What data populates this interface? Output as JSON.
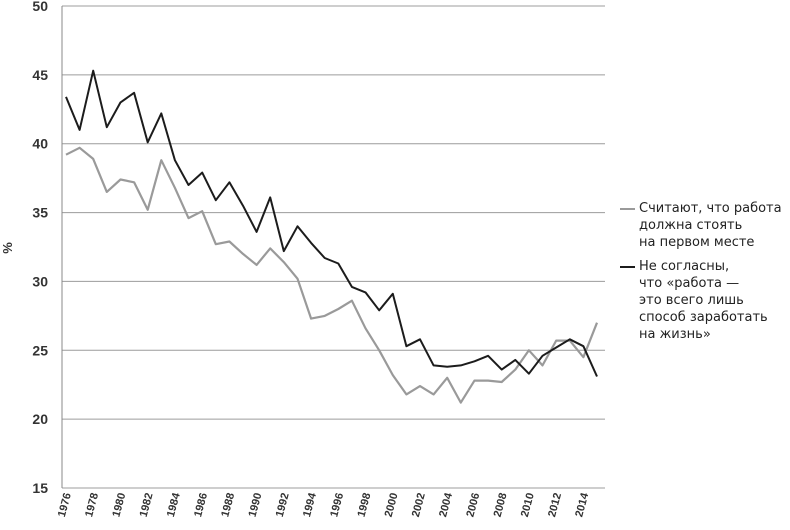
{
  "chart_data": {
    "type": "line",
    "title": "",
    "xlabel": "",
    "ylabel": "%",
    "ylim": [
      15,
      50
    ],
    "yticks": [
      "15",
      "20",
      "25",
      "30",
      "35",
      "40",
      "45",
      "50"
    ],
    "x": [
      1976,
      1977,
      1978,
      1979,
      1980,
      1981,
      1982,
      1983,
      1984,
      1985,
      1986,
      1987,
      1988,
      1989,
      1990,
      1991,
      1992,
      1993,
      1994,
      1995,
      1996,
      1997,
      1998,
      1999,
      2000,
      2001,
      2002,
      2003,
      2004,
      2005,
      2006,
      2007,
      2008,
      2009,
      2010,
      2011,
      2012,
      2013,
      2014,
      2015
    ],
    "xticks": [
      "1976",
      "1978",
      "1980",
      "1982",
      "1984",
      "1986",
      "1988",
      "1990",
      "1992",
      "1994",
      "1996",
      "1998",
      "2000",
      "2002",
      "2004",
      "2006",
      "2008",
      "2010",
      "2012",
      "2014"
    ],
    "grid": true,
    "legend_position": "right",
    "series": [
      {
        "name": "Считают, что работа должна стоять на первом месте",
        "color": "#9a9a9a",
        "values": [
          39.2,
          39.7,
          38.9,
          36.5,
          37.4,
          37.2,
          35.2,
          38.8,
          36.8,
          34.6,
          35.1,
          32.7,
          32.9,
          32.0,
          31.2,
          32.4,
          31.4,
          30.2,
          27.3,
          27.5,
          28.0,
          28.6,
          26.6,
          25.0,
          23.2,
          21.8,
          22.4,
          21.8,
          23.0,
          21.2,
          22.8,
          22.8,
          22.7,
          23.6,
          25.0,
          23.9,
          25.7,
          25.7,
          24.5,
          27.0
        ]
      },
      {
        "name": "Не согласны, что «работа — это всего лишь способ заработать на жизнь»",
        "color": "#1c1c1c",
        "values": [
          43.4,
          41.0,
          45.3,
          41.2,
          43.0,
          43.7,
          40.1,
          42.2,
          38.8,
          37.0,
          37.9,
          35.9,
          37.2,
          35.5,
          33.6,
          36.1,
          32.2,
          34.0,
          32.8,
          31.7,
          31.3,
          29.6,
          29.2,
          27.9,
          29.1,
          25.3,
          25.8,
          23.9,
          23.8,
          23.9,
          24.2,
          24.6,
          23.6,
          24.3,
          23.3,
          24.6,
          25.2,
          25.8,
          25.3,
          23.1
        ]
      }
    ]
  },
  "legend": [
    {
      "text": "Считают, что работа\nдолжна стоять\nна первом месте",
      "color": "#9a9a9a"
    },
    {
      "text": "Не согласны,\nчто «работа —\nэто всего лишь\nспособ заработать\nна жизнь»",
      "color": "#1c1c1c"
    }
  ]
}
